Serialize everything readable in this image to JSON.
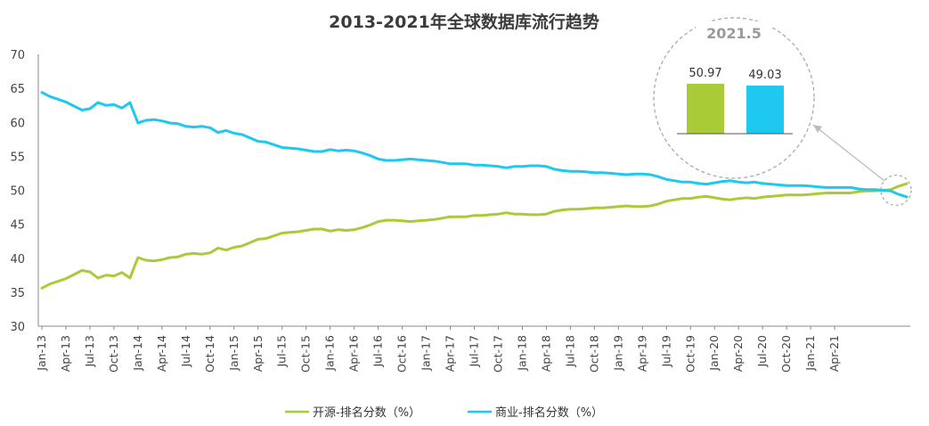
{
  "chart_data": {
    "type": "line",
    "title": "2013-2021年全球数据库流行趋势",
    "xlabel": "",
    "ylabel": "",
    "ylim": [
      30,
      70
    ],
    "yticks": [
      30,
      35,
      40,
      45,
      50,
      55,
      60,
      65,
      70
    ],
    "grid": false,
    "legend_position": "bottom",
    "x_tick_labels": [
      "Jan-13",
      "Apr-13",
      "Jul-13",
      "Oct-13",
      "Jan-14",
      "Apr-14",
      "Jul-14",
      "Oct-14",
      "Jan-15",
      "Apr-15",
      "Jul-15",
      "Oct-15",
      "Jan-16",
      "Apr-16",
      "Jul-16",
      "Oct-16",
      "Jan-17",
      "Apr-17",
      "Jul-17",
      "Oct-17",
      "Jan-18",
      "Apr-18",
      "Jul-18",
      "Oct-18",
      "Jan-19",
      "Apr-19",
      "Jul-19",
      "Oct-19",
      "Jan-20",
      "Apr-20",
      "Jul-20",
      "Oct-20",
      "Jan-21",
      "Apr-21"
    ],
    "series": [
      {
        "name": "开源-排名分数（%）",
        "color": "#a9cb37",
        "values": [
          35.6,
          36.2,
          36.6,
          37.0,
          37.6,
          38.2,
          38.0,
          37.1,
          37.5,
          37.4,
          37.9,
          37.1,
          40.1,
          39.7,
          39.6,
          39.8,
          40.1,
          40.2,
          40.6,
          40.7,
          40.6,
          40.8,
          41.5,
          41.2,
          41.6,
          41.8,
          42.3,
          42.8,
          42.9,
          43.3,
          43.7,
          43.8,
          43.9,
          44.1,
          44.3,
          44.3,
          44.0,
          44.2,
          44.1,
          44.2,
          44.5,
          44.9,
          45.4,
          45.6,
          45.6,
          45.5,
          45.4,
          45.5,
          45.6,
          45.7,
          45.9,
          46.1,
          46.1,
          46.1,
          46.3,
          46.3,
          46.4,
          46.5,
          46.7,
          46.5,
          46.5,
          46.4,
          46.4,
          46.5,
          46.9,
          47.1,
          47.2,
          47.2,
          47.3,
          47.4,
          47.4,
          47.5,
          47.6,
          47.7,
          47.6,
          47.6,
          47.7,
          48.0,
          48.4,
          48.6,
          48.8,
          48.8,
          49.0,
          49.1,
          48.9,
          48.7,
          48.6,
          48.8,
          48.9,
          48.8,
          49.0,
          49.1,
          49.2,
          49.3,
          49.3,
          49.3,
          49.4,
          49.5,
          49.6,
          49.6,
          49.6,
          49.6,
          49.8,
          49.9,
          49.9,
          50.0,
          50.1,
          50.6,
          50.97
        ]
      },
      {
        "name": "商业-排名分数（%）",
        "color": "#1ec8ee",
        "values": [
          64.4,
          63.8,
          63.4,
          63.0,
          62.4,
          61.8,
          62.0,
          62.9,
          62.5,
          62.6,
          62.1,
          62.9,
          59.9,
          60.3,
          60.4,
          60.2,
          59.9,
          59.8,
          59.4,
          59.3,
          59.4,
          59.2,
          58.5,
          58.8,
          58.4,
          58.2,
          57.7,
          57.2,
          57.1,
          56.7,
          56.3,
          56.2,
          56.1,
          55.9,
          55.7,
          55.7,
          56.0,
          55.8,
          55.9,
          55.8,
          55.5,
          55.1,
          54.6,
          54.4,
          54.4,
          54.5,
          54.6,
          54.5,
          54.4,
          54.3,
          54.1,
          53.9,
          53.9,
          53.9,
          53.7,
          53.7,
          53.6,
          53.5,
          53.3,
          53.5,
          53.5,
          53.6,
          53.6,
          53.5,
          53.1,
          52.9,
          52.8,
          52.8,
          52.7,
          52.6,
          52.6,
          52.5,
          52.4,
          52.3,
          52.4,
          52.4,
          52.3,
          52.0,
          51.6,
          51.4,
          51.2,
          51.2,
          51.0,
          50.9,
          51.1,
          51.3,
          51.4,
          51.2,
          51.1,
          51.2,
          51.0,
          50.9,
          50.8,
          50.7,
          50.7,
          50.7,
          50.6,
          50.5,
          50.4,
          50.4,
          50.4,
          50.4,
          50.2,
          50.1,
          50.1,
          50.0,
          49.9,
          49.4,
          49.03
        ]
      }
    ],
    "inset": {
      "label": "2021.5",
      "values": [
        {
          "name": "开源",
          "value": 50.97,
          "label": "50.97",
          "color": "#a9cb37"
        },
        {
          "name": "商业",
          "value": 49.03,
          "label": "49.03",
          "color": "#1ec8ee"
        }
      ]
    }
  }
}
